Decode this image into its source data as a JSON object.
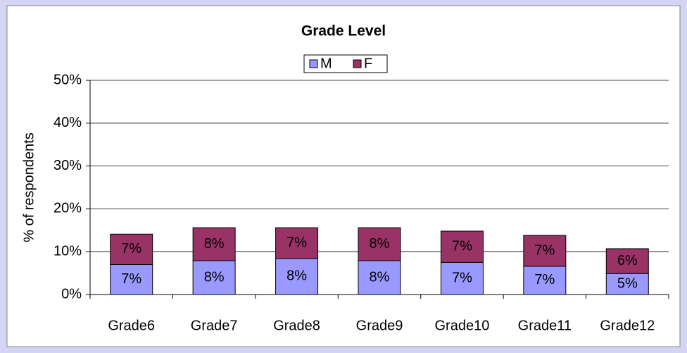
{
  "chart_data": {
    "type": "stacked_bar",
    "title": "Grade Level",
    "y_label": "% of respondents",
    "categories": [
      "Grade6",
      "Grade7",
      "Grade8",
      "Grade9",
      "Grade10",
      "Grade11",
      "Grade12"
    ],
    "series": [
      {
        "name": "M",
        "color": "#9999ff",
        "values": [
          7.0,
          7.9,
          8.4,
          7.9,
          7.5,
          6.6,
          4.9
        ],
        "value_labels": [
          "7%",
          "8%",
          "8%",
          "8%",
          "7%",
          "7%",
          "5%"
        ]
      },
      {
        "name": "F",
        "color": "#993366",
        "values": [
          7.1,
          7.7,
          7.2,
          7.7,
          7.3,
          7.2,
          5.8
        ],
        "value_labels": [
          "7%",
          "8%",
          "7%",
          "8%",
          "7%",
          "7%",
          "6%"
        ]
      }
    ],
    "ylim": [
      0,
      50
    ],
    "yticks": [
      {
        "value": 0,
        "label": "0%"
      },
      {
        "value": 10,
        "label": "10%"
      },
      {
        "value": 20,
        "label": "20%"
      },
      {
        "value": 30,
        "label": "30%"
      },
      {
        "value": 40,
        "label": "40%"
      },
      {
        "value": 50,
        "label": "50%"
      }
    ],
    "grid": true,
    "legend": "top"
  }
}
